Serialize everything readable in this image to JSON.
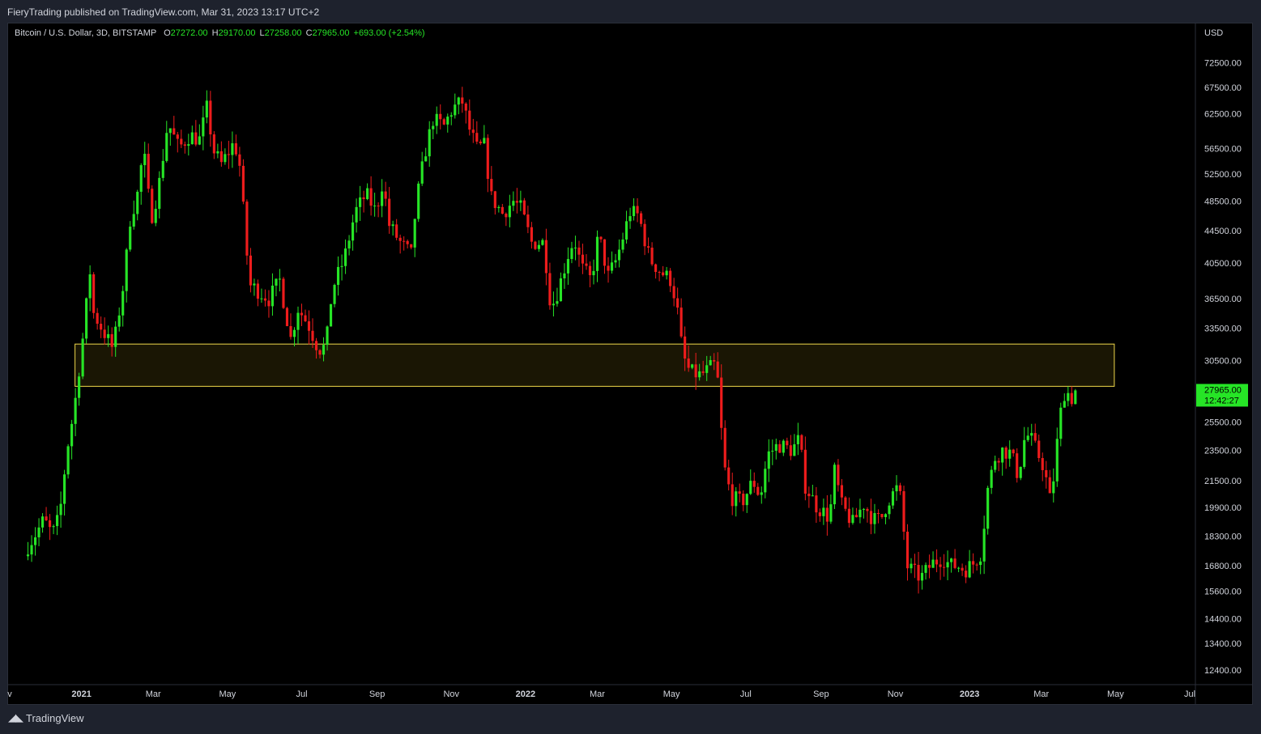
{
  "header": {
    "publish_info": "FieryTrading published on TradingView.com, Mar 31, 2023 13:17 UTC+2"
  },
  "legend": {
    "symbol": "Bitcoin / U.S. Dollar, 3D, BITSTAMP",
    "open_key": "O",
    "open": "27272.00",
    "high_key": "H",
    "high": "29170.00",
    "low_key": "L",
    "low": "27258.00",
    "close_key": "C",
    "close": "27965.00",
    "change": "+693.00 (+2.54%)"
  },
  "footer": {
    "logo_text": "TradingView"
  },
  "colors": {
    "up": "#26e526",
    "down": "#ee1c1c",
    "zone_border": "#f0d84a",
    "zone_fill": "#1a1604",
    "price_tag_bg": "#26e526"
  },
  "chart_data": {
    "type": "candlestick",
    "title": "Bitcoin / U.S. Dollar, 3D, BITSTAMP",
    "y_scale": "log",
    "ylim": [
      11000,
      80000
    ],
    "currency_label": "USD",
    "price_ticks": [
      "72500.00",
      "67500.00",
      "62500.00",
      "56500.00",
      "52500.00",
      "48500.00",
      "44500.00",
      "40500.00",
      "36500.00",
      "33500.00",
      "30500.00",
      "27965.00",
      "25500.00",
      "23500.00",
      "21500.00",
      "19900.00",
      "18300.00",
      "16800.00",
      "15600.00",
      "14400.00",
      "13400.00",
      "12400.00"
    ],
    "price_tick_values": [
      72500,
      67500,
      62500,
      56500,
      52500,
      48500,
      44500,
      40500,
      36500,
      33500,
      30500,
      null,
      25500,
      23500,
      21500,
      19900,
      18300,
      16800,
      15600,
      14400,
      13400,
      12400
    ],
    "time_labels": [
      {
        "label": "ov",
        "date": "2020-11-01",
        "bold": false
      },
      {
        "label": "2021",
        "date": "2021-01-01",
        "bold": true
      },
      {
        "label": "Mar",
        "date": "2021-03-01",
        "bold": false
      },
      {
        "label": "May",
        "date": "2021-05-01",
        "bold": false
      },
      {
        "label": "Jul",
        "date": "2021-07-01",
        "bold": false
      },
      {
        "label": "Sep",
        "date": "2021-09-01",
        "bold": false
      },
      {
        "label": "Nov",
        "date": "2021-11-01",
        "bold": false
      },
      {
        "label": "2022",
        "date": "2022-01-01",
        "bold": true
      },
      {
        "label": "Mar",
        "date": "2022-03-01",
        "bold": false
      },
      {
        "label": "May",
        "date": "2022-05-01",
        "bold": false
      },
      {
        "label": "Jul",
        "date": "2022-07-01",
        "bold": false
      },
      {
        "label": "Sep",
        "date": "2022-09-01",
        "bold": false
      },
      {
        "label": "Nov",
        "date": "2022-11-01",
        "bold": false
      },
      {
        "label": "2023",
        "date": "2023-01-01",
        "bold": true
      },
      {
        "label": "Mar",
        "date": "2023-03-01",
        "bold": false
      },
      {
        "label": "May",
        "date": "2023-05-01",
        "bold": false
      },
      {
        "label": "Jul",
        "date": "2023-07-01",
        "bold": false
      }
    ],
    "last_price": {
      "price": 27965,
      "label": "27965.00",
      "countdown": "12:42:27"
    },
    "support_zone": {
      "low": 28300,
      "high": 32000,
      "start": "2020-12-28",
      "end": "2023-04-30"
    },
    "series_start_date": "2020-11-18",
    "period_days": 3,
    "close_points": [
      [
        "2020-11-18",
        17800
      ],
      [
        "2020-11-25",
        18500
      ],
      [
        "2020-12-01",
        19200
      ],
      [
        "2020-12-08",
        18400
      ],
      [
        "2020-12-14",
        19400
      ],
      [
        "2020-12-20",
        23500
      ],
      [
        "2020-12-26",
        26500
      ],
      [
        "2021-01-02",
        32500
      ],
      [
        "2021-01-08",
        39500
      ],
      [
        "2021-01-11",
        35000
      ],
      [
        "2021-01-20",
        33000
      ],
      [
        "2021-01-27",
        31500
      ],
      [
        "2021-02-05",
        38500
      ],
      [
        "2021-02-10",
        46000
      ],
      [
        "2021-02-16",
        49500
      ],
      [
        "2021-02-21",
        56500
      ],
      [
        "2021-02-27",
        46000
      ],
      [
        "2021-03-05",
        50000
      ],
      [
        "2021-03-13",
        61000
      ],
      [
        "2021-03-22",
        56500
      ],
      [
        "2021-03-31",
        58800
      ],
      [
        "2021-04-08",
        58000
      ],
      [
        "2021-04-14",
        63500
      ],
      [
        "2021-04-20",
        56000
      ],
      [
        "2021-04-26",
        54000
      ],
      [
        "2021-05-05",
        57000
      ],
      [
        "2021-05-10",
        56000
      ],
      [
        "2021-05-13",
        49500
      ],
      [
        "2021-05-19",
        38000
      ],
      [
        "2021-05-25",
        37500
      ],
      [
        "2021-06-04",
        36500
      ],
      [
        "2021-06-13",
        38500
      ],
      [
        "2021-06-22",
        32500
      ],
      [
        "2021-06-28",
        35500
      ],
      [
        "2021-07-06",
        34000
      ],
      [
        "2021-07-15",
        31500
      ],
      [
        "2021-07-21",
        31800
      ],
      [
        "2021-07-26",
        37500
      ],
      [
        "2021-08-05",
        41000
      ],
      [
        "2021-08-14",
        47000
      ],
      [
        "2021-08-23",
        49500
      ],
      [
        "2021-08-31",
        47000
      ],
      [
        "2021-09-06",
        51700
      ],
      [
        "2021-09-10",
        45500
      ],
      [
        "2021-09-20",
        43000
      ],
      [
        "2021-09-29",
        41500
      ],
      [
        "2021-10-03",
        48000
      ],
      [
        "2021-10-10",
        55500
      ],
      [
        "2021-10-17",
        61500
      ],
      [
        "2021-10-26",
        60300
      ],
      [
        "2021-11-02",
        63500
      ],
      [
        "2021-11-10",
        64700
      ],
      [
        "2021-11-16",
        59700
      ],
      [
        "2021-11-22",
        56500
      ],
      [
        "2021-11-28",
        57000
      ],
      [
        "2021-12-04",
        49000
      ],
      [
        "2021-12-13",
        46800
      ],
      [
        "2021-12-22",
        48500
      ],
      [
        "2021-12-28",
        47500
      ],
      [
        "2022-01-06",
        43000
      ],
      [
        "2022-01-16",
        43000
      ],
      [
        "2022-01-22",
        35500
      ],
      [
        "2022-01-28",
        37500
      ],
      [
        "2022-02-05",
        41500
      ],
      [
        "2022-02-10",
        43500
      ],
      [
        "2022-02-16",
        40000
      ],
      [
        "2022-02-24",
        38500
      ],
      [
        "2022-03-02",
        44000
      ],
      [
        "2022-03-10",
        39000
      ],
      [
        "2022-03-17",
        41000
      ],
      [
        "2022-03-28",
        47000
      ],
      [
        "2022-04-04",
        46500
      ],
      [
        "2022-04-13",
        41000
      ],
      [
        "2022-04-22",
        39500
      ],
      [
        "2022-05-01",
        38500
      ],
      [
        "2022-05-07",
        34500
      ],
      [
        "2022-05-10",
        31000
      ],
      [
        "2022-05-16",
        29500
      ],
      [
        "2022-05-25",
        29200
      ],
      [
        "2022-06-01",
        29800
      ],
      [
        "2022-06-07",
        30200
      ],
      [
        "2022-06-13",
        22500
      ],
      [
        "2022-06-19",
        20500
      ],
      [
        "2022-06-28",
        20200
      ],
      [
        "2022-07-07",
        21500
      ],
      [
        "2022-07-13",
        20500
      ],
      [
        "2022-07-19",
        23200
      ],
      [
        "2022-07-28",
        23900
      ],
      [
        "2022-08-08",
        23500
      ],
      [
        "2022-08-14",
        24300
      ],
      [
        "2022-08-19",
        21200
      ],
      [
        "2022-08-28",
        20000
      ],
      [
        "2022-09-08",
        19300
      ],
      [
        "2022-09-12",
        22100
      ],
      [
        "2022-09-18",
        20000
      ],
      [
        "2022-09-27",
        19000
      ],
      [
        "2022-10-06",
        20100
      ],
      [
        "2022-10-14",
        19200
      ],
      [
        "2022-10-20",
        19200
      ],
      [
        "2022-10-26",
        20300
      ],
      [
        "2022-11-04",
        21200
      ],
      [
        "2022-11-08",
        18500
      ],
      [
        "2022-11-10",
        16800
      ],
      [
        "2022-11-14",
        16600
      ],
      [
        "2022-11-22",
        16200
      ],
      [
        "2022-12-01",
        16900
      ],
      [
        "2022-12-10",
        17200
      ],
      [
        "2022-12-16",
        16800
      ],
      [
        "2022-12-22",
        16800
      ],
      [
        "2022-12-28",
        16600
      ],
      [
        "2023-01-04",
        16900
      ],
      [
        "2023-01-10",
        17400
      ],
      [
        "2023-01-13",
        19000
      ],
      [
        "2023-01-16",
        21000
      ],
      [
        "2023-01-22",
        23000
      ],
      [
        "2023-01-28",
        23500
      ],
      [
        "2023-02-04",
        23300
      ],
      [
        "2023-02-10",
        21800
      ],
      [
        "2023-02-16",
        24700
      ],
      [
        "2023-02-21",
        24200
      ],
      [
        "2023-03-03",
        22400
      ],
      [
        "2023-03-09",
        20000
      ],
      [
        "2023-03-12",
        22500
      ],
      [
        "2023-03-15",
        24800
      ],
      [
        "2023-03-18",
        27000
      ],
      [
        "2023-03-21",
        28200
      ],
      [
        "2023-03-24",
        27500
      ],
      [
        "2023-03-27",
        27272
      ],
      [
        "2023-03-30",
        27965
      ]
    ]
  }
}
